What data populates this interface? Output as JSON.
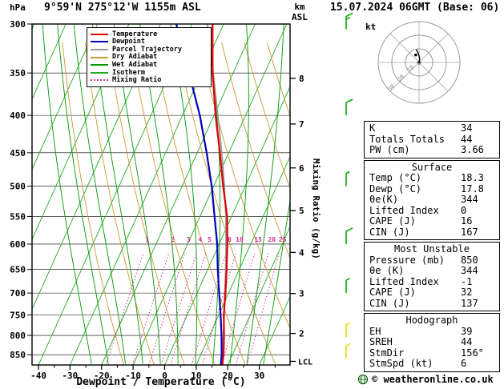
{
  "header": {
    "pressure_unit": "hPa",
    "station_title": "9°59'N 275°12'W 1155m ASL",
    "datetime_title": "15.07.2024 06GMT (Base: 06)",
    "altitude_unit_line1": "km",
    "altitude_unit_line2": "ASL"
  },
  "colors": {
    "temperature": "#dd0000",
    "dewpoint": "#0000bb",
    "parcel": "#999999",
    "dry_adiabat": "#cc9933",
    "wet_adiabat": "#009900",
    "isotherm": "#22aa22",
    "mixing_ratio": "#cc3399",
    "frame": "#000000",
    "wind_barb_green": "#00aa00",
    "wind_barb_yellow": "#dddd00"
  },
  "legend": [
    {
      "label": "Temperature",
      "color": "#dd0000",
      "style": "solid"
    },
    {
      "label": "Dewpoint",
      "color": "#0000bb",
      "style": "solid"
    },
    {
      "label": "Parcel Trajectory",
      "color": "#999999",
      "style": "solid"
    },
    {
      "label": "Dry Adiabat",
      "color": "#cc9933",
      "style": "solid"
    },
    {
      "label": "Wet Adiabat",
      "color": "#009900",
      "style": "solid"
    },
    {
      "label": "Isotherm",
      "color": "#22aa22",
      "style": "solid"
    },
    {
      "label": "Mixing Ratio",
      "color": "#cc3399",
      "style": "dotted"
    }
  ],
  "chart_data": {
    "type": "line",
    "title": "Skew-T log-P sounding",
    "x_axis": {
      "label": "Dewpoint / Temperature (°C)",
      "ticks": [
        -40,
        -30,
        -20,
        -10,
        0,
        10,
        20,
        30
      ],
      "unit": "°C"
    },
    "y_axis": {
      "unit": "hPa",
      "scale": "log",
      "ticks": [
        300,
        350,
        400,
        450,
        500,
        550,
        600,
        650,
        700,
        750,
        800,
        850
      ],
      "range": [
        300,
        878
      ]
    },
    "secondary_y_axis": {
      "unit": "km ASL",
      "ticks": [
        {
          "km": 2,
          "pressure": 795
        },
        {
          "km": 3,
          "pressure": 701
        },
        {
          "km": 4,
          "pressure": 616
        },
        {
          "km": 5,
          "pressure": 540
        },
        {
          "km": 6,
          "pressure": 472
        },
        {
          "km": 7,
          "pressure": 411
        },
        {
          "km": 8,
          "pressure": 356
        }
      ],
      "lcl_label": "LCL",
      "lcl_pressure": 868
    },
    "mixing_axis_label": "Mixing Ratio (g/kg)",
    "mixing_ratio_lines_g_per_kg": [
      1,
      2,
      3,
      4,
      5,
      8,
      10,
      15,
      20,
      25
    ],
    "series": [
      {
        "name": "Parcel Trajectory",
        "color": "#999999",
        "width": 1.8,
        "points": [
          [
            878,
            18.3
          ],
          [
            868,
            17.4
          ],
          [
            850,
            16.7
          ],
          [
            800,
            14.4
          ],
          [
            750,
            11.7
          ],
          [
            700,
            8.8
          ],
          [
            650,
            5.7
          ],
          [
            600,
            2.2
          ],
          [
            550,
            -1.8
          ],
          [
            500,
            -6.6
          ],
          [
            450,
            -12.2
          ],
          [
            400,
            -18.8
          ],
          [
            350,
            -26.3
          ],
          [
            300,
            -35.2
          ]
        ]
      },
      {
        "name": "Dewpoint",
        "color": "#0000bb",
        "width": 2.2,
        "points": [
          [
            878,
            17.8
          ],
          [
            850,
            16.6
          ],
          [
            800,
            13.8
          ],
          [
            750,
            10.6
          ],
          [
            700,
            7.0
          ],
          [
            650,
            3.2
          ],
          [
            600,
            -0.6
          ],
          [
            550,
            -5.4
          ],
          [
            500,
            -10.6
          ],
          [
            450,
            -17.0
          ],
          [
            400,
            -24.5
          ],
          [
            350,
            -34.0
          ],
          [
            300,
            -45.0
          ]
        ]
      },
      {
        "name": "Temperature",
        "color": "#dd0000",
        "width": 2.2,
        "points": [
          [
            878,
            18.3
          ],
          [
            850,
            17.2
          ],
          [
            800,
            14.6
          ],
          [
            750,
            11.6
          ],
          [
            700,
            9.0
          ],
          [
            650,
            6.0
          ],
          [
            600,
            2.6
          ],
          [
            550,
            -1.4
          ],
          [
            500,
            -7.0
          ],
          [
            450,
            -12.8
          ],
          [
            400,
            -19.5
          ],
          [
            350,
            -26.5
          ],
          [
            300,
            -33.5
          ]
        ]
      }
    ],
    "wind_barbs": [
      {
        "pressure": 305,
        "speed_kt": 15,
        "color": "#00aa00"
      },
      {
        "pressure": 400,
        "speed_kt": 10,
        "color": "#00aa00"
      },
      {
        "pressure": 500,
        "speed_kt": 5,
        "color": "#00aa00"
      },
      {
        "pressure": 600,
        "speed_kt": 10,
        "color": "#00aa00"
      },
      {
        "pressure": 700,
        "speed_kt": 5,
        "color": "#00aa00"
      },
      {
        "pressure": 805,
        "speed_kt": 5,
        "color": "#dddd00"
      },
      {
        "pressure": 860,
        "speed_kt": 5,
        "color": "#dddd00"
      }
    ],
    "hodograph": {
      "unit": "kt",
      "rings_kt": [
        10,
        20,
        30
      ],
      "trace_uv_kt": [
        [
          0,
          0
        ],
        [
          0.5,
          3
        ],
        [
          -0.5,
          6.5
        ],
        [
          -2,
          9.5
        ]
      ],
      "storm_motion": {
        "dir_deg": 156,
        "speed_kt": 6
      }
    }
  },
  "tables": [
    {
      "title": "",
      "rows": [
        [
          "K",
          "34"
        ],
        [
          "Totals Totals",
          "44"
        ],
        [
          "PW (cm)",
          "3.66"
        ]
      ]
    },
    {
      "title": "Surface",
      "rows": [
        [
          "Temp (°C)",
          "18.3"
        ],
        [
          "Dewp (°C)",
          "17.8"
        ],
        [
          "θe(K)",
          "344"
        ],
        [
          "Lifted Index",
          "0"
        ],
        [
          "CAPE (J)",
          "16"
        ],
        [
          "CIN (J)",
          "167"
        ]
      ]
    },
    {
      "title": "Most Unstable",
      "rows": [
        [
          "Pressure (mb)",
          "850"
        ],
        [
          "θe (K)",
          "344"
        ],
        [
          "Lifted Index",
          "-1"
        ],
        [
          "CAPE (J)",
          "32"
        ],
        [
          "CIN (J)",
          "137"
        ]
      ]
    },
    {
      "title": "Hodograph",
      "rows": [
        [
          "EH",
          "39"
        ],
        [
          "SREH",
          "44"
        ],
        [
          "StmDir",
          "156°"
        ],
        [
          "StmSpd (kt)",
          "6"
        ]
      ]
    }
  ],
  "footer": {
    "copyright": "© weatheronline.co.uk"
  }
}
